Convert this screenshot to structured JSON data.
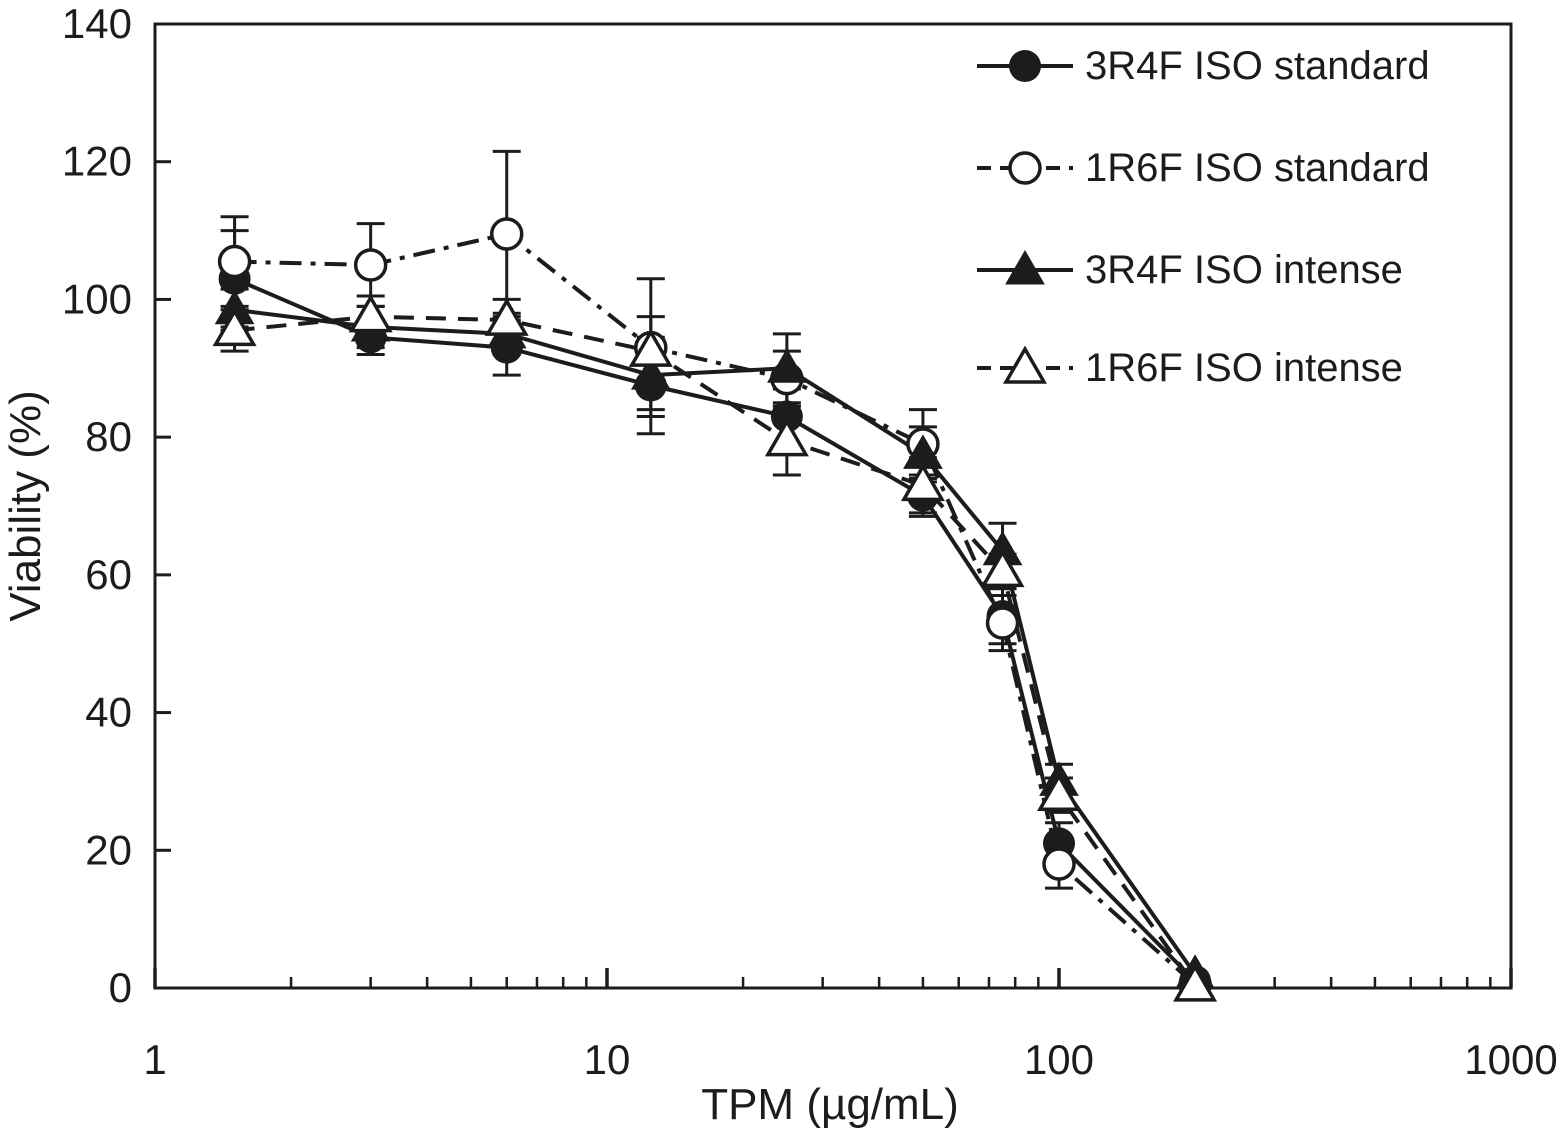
{
  "figure": {
    "background": "#ffffff",
    "ink_color": "#1c1c1c"
  },
  "chart_data": {
    "type": "line",
    "title": "",
    "xlabel": "TPM (µg/mL)",
    "ylabel": "Viability (%)",
    "x_scale": "log",
    "xlim": [
      1,
      1000
    ],
    "ylim": [
      0,
      140
    ],
    "x_ticks": [
      1,
      10,
      100,
      1000
    ],
    "y_ticks": [
      0,
      20,
      40,
      60,
      80,
      100,
      120,
      140
    ],
    "grid": false,
    "legend_position": "top-right",
    "x": [
      1.5,
      3,
      6,
      12.5,
      25,
      50,
      75,
      100,
      200
    ],
    "series": [
      {
        "name": "3R4F ISO standard",
        "marker": "circle-filled",
        "line": "solid",
        "values": [
          103,
          94.5,
          93,
          87.5,
          83,
          71.5,
          54,
          21,
          1
        ],
        "errors": [
          7,
          2.5,
          4,
          7,
          4,
          3,
          4,
          3,
          0
        ]
      },
      {
        "name": "1R6F ISO standard",
        "marker": "circle-open",
        "line": "dash-dot",
        "values": [
          105.5,
          105,
          109.5,
          93,
          88.5,
          79,
          53,
          18,
          0.5
        ],
        "errors": [
          6.5,
          6,
          12,
          10,
          4,
          5,
          4,
          3.5,
          0
        ]
      },
      {
        "name": "3R4F ISO intense",
        "marker": "triangle-filled",
        "line": "solid",
        "values": [
          98.5,
          96,
          95,
          89,
          90,
          77.5,
          63.5,
          30,
          2
        ],
        "errors": [
          3,
          3,
          3,
          5,
          5,
          4,
          4,
          2.5,
          0
        ]
      },
      {
        "name": "1R6F ISO intense",
        "marker": "triangle-open",
        "line": "dashed",
        "values": [
          95.5,
          97.5,
          97,
          92.5,
          79.5,
          73,
          60.5,
          28,
          0.3
        ],
        "errors": [
          3,
          3,
          3,
          5,
          5,
          4,
          2.5,
          2.5,
          0
        ]
      }
    ]
  }
}
